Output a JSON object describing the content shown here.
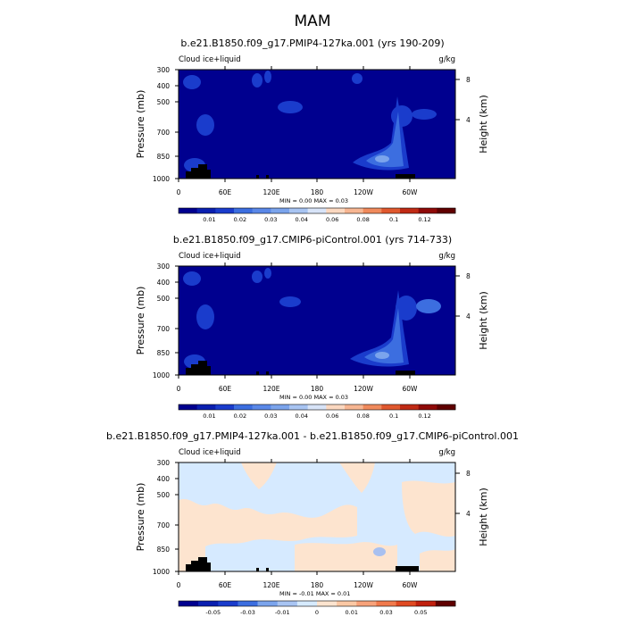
{
  "figure": {
    "title": "MAM"
  },
  "colors": {
    "background_field": "#00008f",
    "mid_blue": "#1a3ccc",
    "light_blue": "#3c6ee0",
    "pale_blue": "#7ba4ec",
    "diff_pale_blue": "#d6eaff",
    "diff_pale_orange": "#fde4cf",
    "diff_blue": "#a8c0f0",
    "land": "#000000"
  },
  "chart_data": [
    {
      "type": "heatmap",
      "title": "b.e21.B1850.f09_g17.PMIP4-127ka.001 (yrs 190-209)",
      "variable_label": "Cloud ice+liquid",
      "units": "g/kg",
      "ylabel": "Pressure (mb)",
      "y2label": "Height (km)",
      "xticks": [
        "0",
        "60E",
        "120E",
        "180",
        "120W",
        "60W"
      ],
      "yticks": [
        "300",
        "400",
        "500",
        "700",
        "850",
        "1000"
      ],
      "y2ticks": [
        "8",
        "4"
      ],
      "minmax_text": "MIN =    0.00  MAX =    0.03",
      "colorbar_labels": [
        "0.01",
        "0.02",
        "0.03",
        "0.04",
        "0.06",
        "0.08",
        "0.1",
        "0.12"
      ],
      "colorbar_colors": [
        "#00008f",
        "#0a1fb0",
        "#1a3ccc",
        "#3c6ee0",
        "#5a88e8",
        "#7ba4ec",
        "#a8c4f2",
        "#d8e4f8",
        "#fbd8c0",
        "#f7b692",
        "#f08a5c",
        "#e0582e",
        "#c02a14",
        "#8f0a08",
        "#600000"
      ]
    },
    {
      "type": "heatmap",
      "title": "b.e21.B1850.f09_g17.CMIP6-piControl.001 (yrs 714-733)",
      "variable_label": "Cloud ice+liquid",
      "units": "g/kg",
      "ylabel": "Pressure (mb)",
      "y2label": "Height (km)",
      "xticks": [
        "0",
        "60E",
        "120E",
        "180",
        "120W",
        "60W"
      ],
      "yticks": [
        "300",
        "400",
        "500",
        "700",
        "850",
        "1000"
      ],
      "y2ticks": [
        "8",
        "4"
      ],
      "minmax_text": "MIN =    0.00  MAX =    0.03",
      "colorbar_labels": [
        "0.01",
        "0.02",
        "0.03",
        "0.04",
        "0.06",
        "0.08",
        "0.1",
        "0.12"
      ],
      "colorbar_colors": [
        "#00008f",
        "#0a1fb0",
        "#1a3ccc",
        "#3c6ee0",
        "#5a88e8",
        "#7ba4ec",
        "#a8c4f2",
        "#d8e4f8",
        "#fbd8c0",
        "#f7b692",
        "#f08a5c",
        "#e0582e",
        "#c02a14",
        "#8f0a08",
        "#600000"
      ]
    },
    {
      "type": "heatmap",
      "title": "b.e21.B1850.f09_g17.PMIP4-127ka.001 - b.e21.B1850.f09_g17.CMIP6-piControl.001",
      "variable_label": "Cloud ice+liquid",
      "units": "g/kg",
      "ylabel": "Pressure (mb)",
      "y2label": "Height (km)",
      "xticks": [
        "0",
        "60E",
        "120E",
        "180",
        "120W",
        "60W"
      ],
      "yticks": [
        "300",
        "400",
        "500",
        "700",
        "850",
        "1000"
      ],
      "y2ticks": [
        "8",
        "4"
      ],
      "minmax_text": "MIN =   -0.01  MAX =    0.01",
      "colorbar_labels": [
        "-0.05",
        "-0.03",
        "-0.01",
        "0",
        "0.01",
        "0.03",
        "0.05"
      ],
      "colorbar_colors": [
        "#00008f",
        "#0a1fb0",
        "#1a3ccc",
        "#3c6ee0",
        "#7ba4ec",
        "#a8c4f2",
        "#d6eaff",
        "#fde4cf",
        "#fbc8a4",
        "#f7a27a",
        "#f07a4c",
        "#e04a22",
        "#c0200e",
        "#600000"
      ]
    }
  ]
}
